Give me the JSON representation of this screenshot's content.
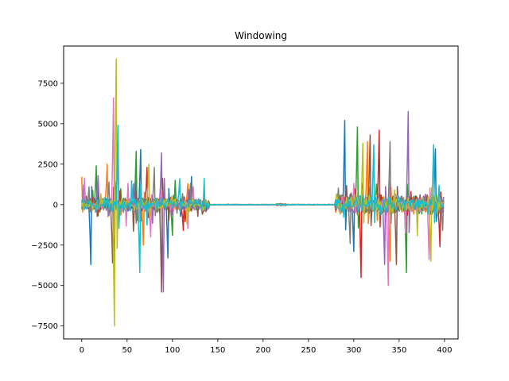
{
  "chart_data": {
    "type": "line",
    "title": "Windowing",
    "xlabel": "",
    "ylabel": "",
    "xlim": [
      -20,
      415
    ],
    "ylim": [
      -8300,
      9800
    ],
    "x_ticks": [
      0,
      50,
      100,
      150,
      200,
      250,
      300,
      350,
      400
    ],
    "x_tick_labels": [
      "0",
      "50",
      "100",
      "150",
      "200",
      "250",
      "300",
      "350",
      "400"
    ],
    "y_ticks": [
      -7500,
      -5000,
      -2500,
      0,
      2500,
      5000,
      7500
    ],
    "y_tick_labels": [
      "−7500",
      "−5000",
      "−2500",
      "0",
      "2500",
      "5000",
      "7500"
    ],
    "grid": false,
    "legend": "none",
    "n_points": 400,
    "colors": [
      "#1f77b4",
      "#ff7f0e",
      "#2ca02c",
      "#d62728",
      "#9467bd",
      "#8c564b",
      "#e377c2",
      "#7f7f7f",
      "#bcbd22",
      "#17becf"
    ],
    "active_segments": [
      [
        0,
        140
      ],
      [
        215,
        225
      ],
      [
        280,
        400
      ]
    ],
    "series": [
      {
        "color_index": 0,
        "peaks": [
          [
            10,
            -3700
          ],
          [
            65,
            3400
          ],
          [
            95,
            -3300
          ],
          [
            290,
            5200
          ],
          [
            300,
            -2900
          ],
          [
            390,
            3450
          ]
        ]
      },
      {
        "color_index": 1,
        "peaks": [
          [
            28,
            2500
          ],
          [
            68,
            -2500
          ],
          [
            117,
            1300
          ],
          [
            315,
            3900
          ],
          [
            340,
            -3500
          ]
        ]
      },
      {
        "color_index": 2,
        "peaks": [
          [
            16,
            2400
          ],
          [
            60,
            3300
          ],
          [
            100,
            -1900
          ],
          [
            304,
            4800
          ],
          [
            358,
            -4200
          ]
        ]
      },
      {
        "color_index": 3,
        "peaks": [
          [
            36,
            -4700
          ],
          [
            72,
            2300
          ],
          [
            112,
            -1600
          ],
          [
            308,
            -4500
          ],
          [
            328,
            4600
          ],
          [
            395,
            -2600
          ]
        ]
      },
      {
        "color_index": 4,
        "peaks": [
          [
            40,
            3900
          ],
          [
            88,
            3200
          ],
          [
            90,
            -5400
          ],
          [
            360,
            5750
          ],
          [
            334,
            -3700
          ]
        ]
      },
      {
        "color_index": 5,
        "peaks": [
          [
            34,
            -3600
          ],
          [
            88,
            -5400
          ],
          [
            120,
            1300
          ],
          [
            318,
            4300
          ],
          [
            347,
            -3700
          ]
        ]
      },
      {
        "color_index": 6,
        "peaks": [
          [
            35,
            6600
          ],
          [
            76,
            -2000
          ],
          [
            123,
            1100
          ],
          [
            338,
            -5000
          ],
          [
            383,
            -3400
          ]
        ]
      },
      {
        "color_index": 7,
        "peaks": [
          [
            30,
            1400
          ],
          [
            80,
            2300
          ],
          [
            296,
            -2400
          ],
          [
            340,
            3900
          ],
          [
            398,
            -1600
          ]
        ]
      },
      {
        "color_index": 8,
        "peaks": [
          [
            36,
            -7500
          ],
          [
            38,
            9000
          ],
          [
            74,
            2500
          ],
          [
            310,
            3800
          ],
          [
            385,
            -3500
          ]
        ]
      },
      {
        "color_index": 9,
        "peaks": [
          [
            40,
            4900
          ],
          [
            64,
            -4200
          ],
          [
            108,
            1600
          ],
          [
            322,
            3700
          ],
          [
            388,
            3700
          ]
        ]
      }
    ]
  }
}
